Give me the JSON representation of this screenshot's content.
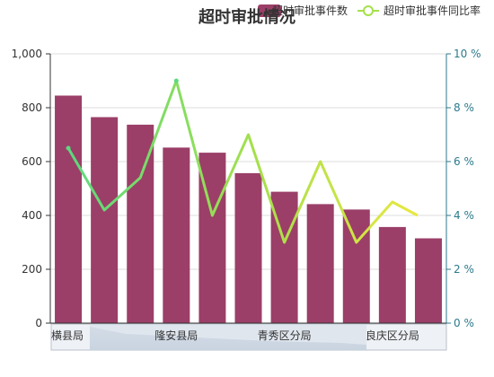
{
  "chart_data": {
    "type": "bar",
    "title": "超时审批情况",
    "legend": {
      "placement": "top-right",
      "items": [
        {
          "name": "超时审批事件数",
          "symbol": "bar",
          "color": "#9b3f68"
        },
        {
          "name": "超时审批事件同比率",
          "symbol": "line",
          "color": "#a6e04a"
        }
      ]
    },
    "categories": [
      "横县局",
      "",
      "",
      "隆安县局",
      "",
      "",
      "青秀区分局",
      "",
      "",
      "良庆区分局",
      ""
    ],
    "x_tick_labels": [
      "横县局",
      "隆安县局",
      "青秀区分局",
      "良庆区分局"
    ],
    "series": [
      {
        "name": "超时审批事件数",
        "type": "bar",
        "axis": "left",
        "color": "#9b3f68",
        "values": [
          845,
          765,
          737,
          652,
          633,
          557,
          488,
          442,
          422,
          357,
          315
        ]
      },
      {
        "name": "超时审批事件同比率",
        "type": "line",
        "axis": "right",
        "gradient": [
          "#5cd97e",
          "#a6e04a",
          "#e8e840"
        ],
        "values": [
          6.5,
          4.2,
          5.4,
          9.0,
          4.0,
          7.0,
          3.0,
          6.0,
          3.0,
          4.5,
          4.0
        ]
      }
    ],
    "y_left": {
      "min": 0,
      "max": 1000,
      "ticks": [
        0,
        200,
        400,
        600,
        800,
        1000
      ],
      "tick_labels": [
        "0",
        "200",
        "400",
        "600",
        "800",
        "1,000"
      ]
    },
    "y_right": {
      "min": 0,
      "max": 10,
      "ticks": [
        0,
        2,
        4,
        6,
        8,
        10
      ],
      "tick_labels": [
        "0 %",
        "2 %",
        "4 %",
        "6 %",
        "8 %",
        "10 %"
      ],
      "color": "#2c7a8c"
    },
    "grid": true,
    "datazoom": true
  }
}
